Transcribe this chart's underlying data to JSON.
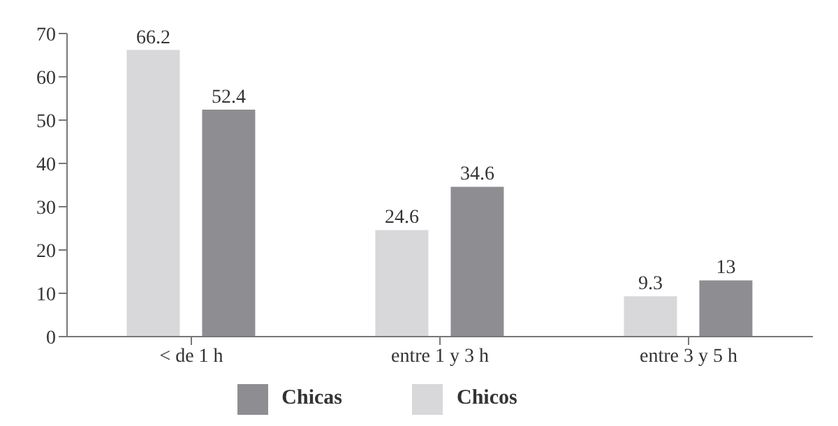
{
  "chart_data": {
    "type": "bar",
    "categories": [
      "< de 1 h",
      "entre 1 y 3 h",
      "entre 3 y 5 h"
    ],
    "series": [
      {
        "name": "Chicos",
        "color": "#d8d8db",
        "values": [
          66.2,
          24.6,
          9.3
        ]
      },
      {
        "name": "Chicas",
        "color": "#8e8e92",
        "values": [
          52.4,
          34.6,
          13
        ]
      }
    ],
    "ylim": [
      0,
      70
    ],
    "yticks": [
      0,
      10,
      20,
      30,
      40,
      50,
      60,
      70
    ],
    "data_labels": true,
    "legend": "bottom",
    "grid": false
  }
}
